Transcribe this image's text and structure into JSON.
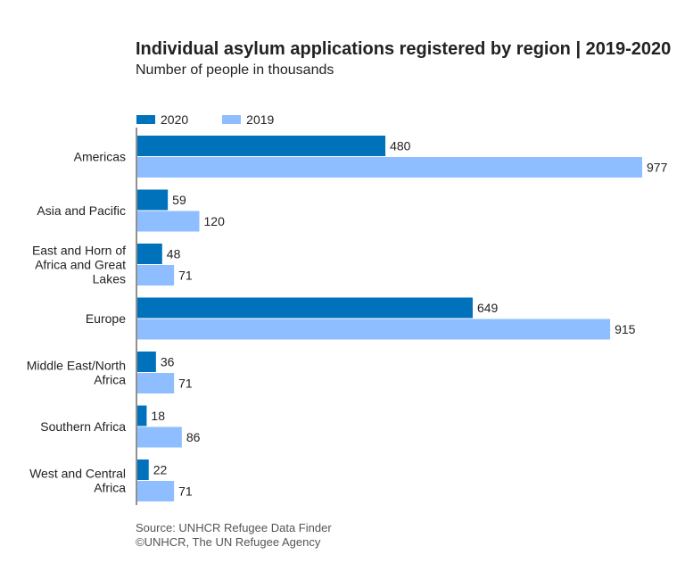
{
  "title": "Individual asylum applications registered by region | 2019-2020",
  "subtitle": "Number of people in thousands",
  "colors": {
    "2020": "#0072bc",
    "2019": "#8ebeff",
    "axis": "#222222",
    "text": "#222222"
  },
  "footer": {
    "source": "Source: UNHCR Refugee Data Finder",
    "credit": "©UNHCR, The UN Refugee Agency"
  },
  "chart_data": {
    "type": "bar",
    "orientation": "horizontal",
    "categories": [
      [
        "Americas"
      ],
      [
        "Asia and Pacific"
      ],
      [
        "East and Horn of",
        "Africa and Great",
        "Lakes"
      ],
      [
        "Europe"
      ],
      [
        "Middle East/North",
        "Africa"
      ],
      [
        "Southern Africa"
      ],
      [
        "West and Central",
        "Africa"
      ]
    ],
    "series": [
      {
        "name": "2020",
        "values": [
          480,
          59,
          48,
          649,
          36,
          18,
          22
        ]
      },
      {
        "name": "2019",
        "values": [
          977,
          120,
          71,
          915,
          71,
          86,
          71
        ]
      }
    ],
    "xlim": [
      0,
      977
    ],
    "grid": false,
    "legend": "top-left"
  }
}
